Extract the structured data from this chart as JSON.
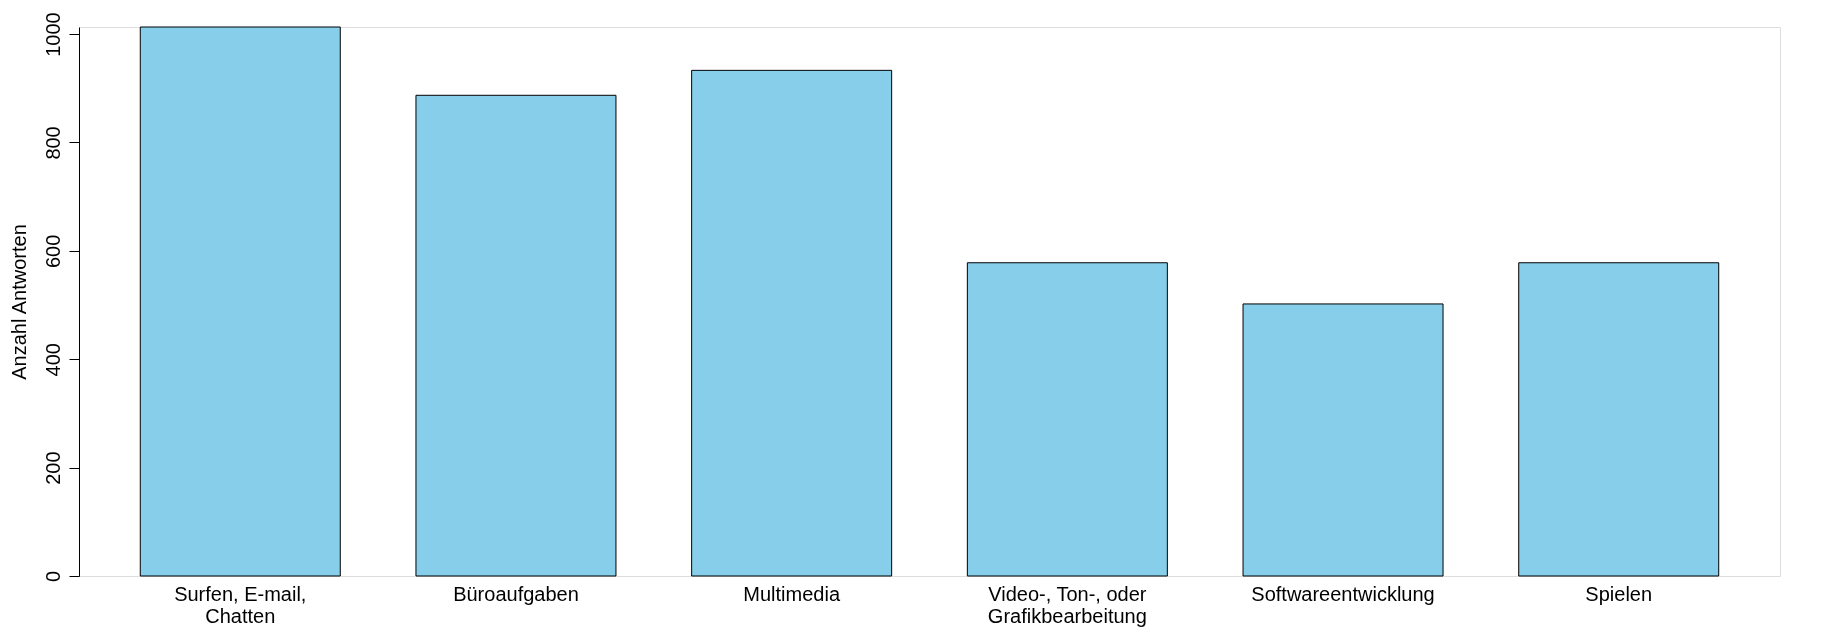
{
  "chart_data": {
    "type": "bar",
    "categories": [
      "Surfen, E-mail,\nChatten",
      "Büroaufgaben",
      "Multimedia",
      "Video-, Ton-, oder\nGrafikbearbeitung",
      "Softwareentwicklung",
      "Spielen"
    ],
    "values": [
      1013,
      887,
      933,
      578,
      502,
      578
    ],
    "color": "#87ceeb",
    "ylabel": "Anzahl Antworten",
    "ylim": [
      0,
      1013
    ],
    "yticks": [
      0,
      200,
      400,
      600,
      800,
      1000
    ],
    "grid": false
  }
}
